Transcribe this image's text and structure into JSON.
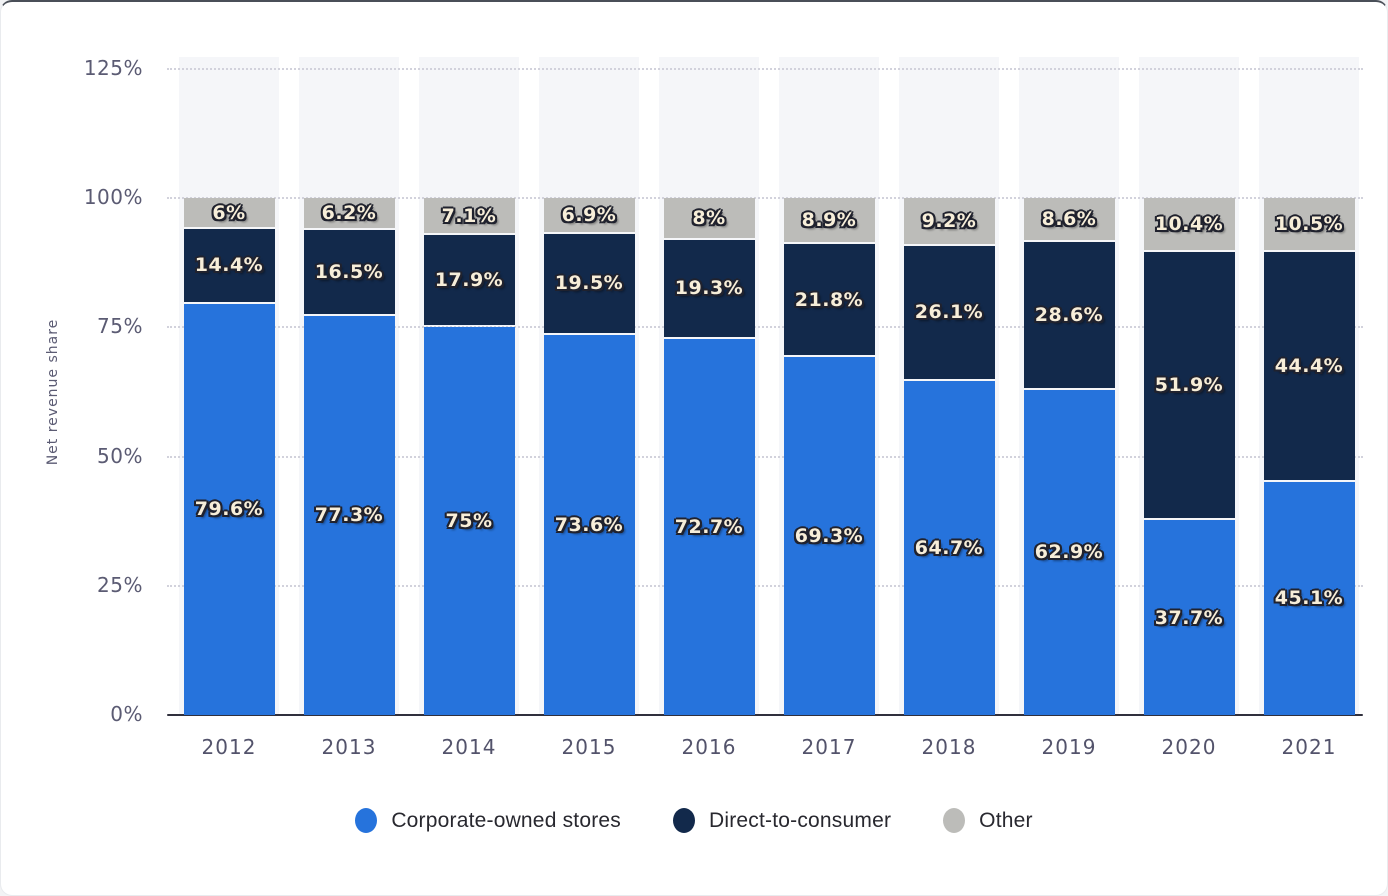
{
  "chart_data": {
    "type": "bar",
    "stacked": true,
    "title": "",
    "xlabel": "",
    "ylabel": "Net revenue share",
    "ylim": [
      0,
      125
    ],
    "grid": "dotted-horizontal",
    "legend_position": "bottom",
    "yticks": [
      {
        "value": 0,
        "label": "0%"
      },
      {
        "value": 25,
        "label": "25%"
      },
      {
        "value": 50,
        "label": "50%"
      },
      {
        "value": 75,
        "label": "75%"
      },
      {
        "value": 100,
        "label": "100%"
      },
      {
        "value": 125,
        "label": "125%"
      }
    ],
    "categories": [
      "2012",
      "2013",
      "2014",
      "2015",
      "2016",
      "2017",
      "2018",
      "2019",
      "2020",
      "2021"
    ],
    "series": [
      {
        "name": "Corporate-owned stores",
        "color": "#2673dc",
        "values": [
          79.6,
          77.3,
          75,
          73.6,
          72.7,
          69.3,
          64.7,
          62.9,
          37.7,
          45.1
        ],
        "labels": [
          "79.6%",
          "77.3%",
          "75%",
          "73.6%",
          "72.7%",
          "69.3%",
          "64.7%",
          "62.9%",
          "37.7%",
          "45.1%"
        ]
      },
      {
        "name": "Direct-to-consumer",
        "color": "#12294b",
        "values": [
          14.4,
          16.5,
          17.9,
          19.5,
          19.3,
          21.8,
          26.1,
          28.6,
          51.9,
          44.4
        ],
        "labels": [
          "14.4%",
          "16.5%",
          "17.9%",
          "19.5%",
          "19.3%",
          "21.8%",
          "26.1%",
          "28.6%",
          "51.9%",
          "44.4%"
        ]
      },
      {
        "name": "Other",
        "color": "#bcbcb9",
        "values": [
          6,
          6.2,
          7.1,
          6.9,
          8,
          8.9,
          9.2,
          8.6,
          10.4,
          10.5
        ],
        "labels": [
          "6%",
          "6.2%",
          "7.1%",
          "6.9%",
          "8%",
          "8.9%",
          "9.2%",
          "8.6%",
          "10.4%",
          "10.5%"
        ]
      }
    ]
  },
  "colors": {
    "grid": "#d2d2dc",
    "axis_line": "#30303d",
    "tick_text": "#5b5b73",
    "band": "#f5f6f9",
    "legend_text": "#28282f"
  }
}
